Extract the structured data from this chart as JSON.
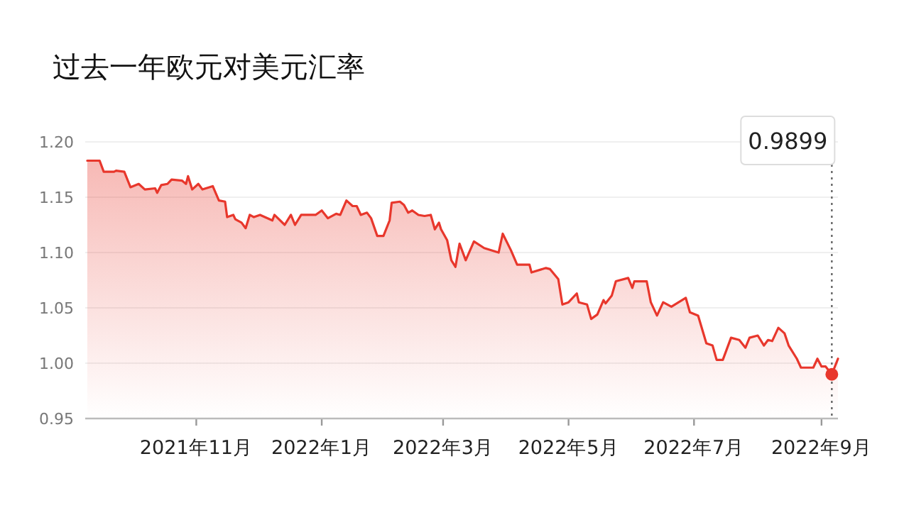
{
  "chart_data": {
    "type": "area",
    "title": "过去一年欧元对美元汇率",
    "color": "#e8372c",
    "grid": "y",
    "x": [
      "2021-09-09",
      "2021-09-15",
      "2021-09-17",
      "2021-09-22",
      "2021-09-23",
      "2021-09-27",
      "2021-09-30",
      "2021-10-04",
      "2021-10-07",
      "2021-10-12",
      "2021-10-13",
      "2021-10-15",
      "2021-10-18",
      "2021-10-20",
      "2021-10-25",
      "2021-10-27",
      "2021-10-28",
      "2021-10-30",
      "2021-11-02",
      "2021-11-04",
      "2021-11-09",
      "2021-11-12",
      "2021-11-15",
      "2021-11-16",
      "2021-11-19",
      "2021-11-20",
      "2021-11-23",
      "2021-11-25",
      "2021-11-27",
      "2021-11-29",
      "2021-12-02",
      "2021-12-08",
      "2021-12-09",
      "2021-12-14",
      "2021-12-17",
      "2021-12-19",
      "2021-12-22",
      "2021-12-29",
      "2022-01-01",
      "2022-01-04",
      "2022-01-08",
      "2022-01-10",
      "2022-01-13",
      "2022-01-16",
      "2022-01-18",
      "2022-01-20",
      "2022-01-23",
      "2022-01-25",
      "2022-01-28",
      "2022-01-31",
      "2022-02-03",
      "2022-02-04",
      "2022-02-08",
      "2022-02-10",
      "2022-02-12",
      "2022-02-14",
      "2022-02-17",
      "2022-02-20",
      "2022-02-23",
      "2022-02-25",
      "2022-02-27",
      "2022-02-28",
      "2022-03-03",
      "2022-03-05",
      "2022-03-07",
      "2022-03-09",
      "2022-03-12",
      "2022-03-16",
      "2022-03-21",
      "2022-03-28",
      "2022-03-30",
      "2022-04-03",
      "2022-04-06",
      "2022-04-12",
      "2022-04-13",
      "2022-04-20",
      "2022-04-22",
      "2022-04-26",
      "2022-04-28",
      "2022-05-01",
      "2022-05-05",
      "2022-05-06",
      "2022-05-10",
      "2022-05-12",
      "2022-05-15",
      "2022-05-18",
      "2022-05-19",
      "2022-05-22",
      "2022-05-24",
      "2022-05-30",
      "2022-06-01",
      "2022-06-02",
      "2022-06-08",
      "2022-06-10",
      "2022-06-13",
      "2022-06-16",
      "2022-06-20",
      "2022-06-27",
      "2022-06-29",
      "2022-07-03",
      "2022-07-07",
      "2022-07-10",
      "2022-07-12",
      "2022-07-15",
      "2022-07-19",
      "2022-07-23",
      "2022-07-26",
      "2022-07-28",
      "2022-08-01",
      "2022-08-04",
      "2022-08-06",
      "2022-08-08",
      "2022-08-11",
      "2022-08-14",
      "2022-08-16",
      "2022-08-20",
      "2022-08-22",
      "2022-08-28",
      "2022-08-30",
      "2022-09-01",
      "2022-09-03",
      "2022-09-06",
      "2022-09-09"
    ],
    "values": [
      1.183,
      1.183,
      1.173,
      1.173,
      1.174,
      1.173,
      1.159,
      1.162,
      1.157,
      1.158,
      1.154,
      1.161,
      1.162,
      1.166,
      1.165,
      1.162,
      1.169,
      1.157,
      1.162,
      1.157,
      1.16,
      1.147,
      1.146,
      1.132,
      1.134,
      1.13,
      1.127,
      1.122,
      1.134,
      1.132,
      1.134,
      1.129,
      1.134,
      1.125,
      1.134,
      1.125,
      1.134,
      1.134,
      1.138,
      1.131,
      1.135,
      1.134,
      1.147,
      1.142,
      1.142,
      1.134,
      1.136,
      1.131,
      1.115,
      1.115,
      1.129,
      1.145,
      1.146,
      1.143,
      1.136,
      1.138,
      1.134,
      1.133,
      1.134,
      1.121,
      1.127,
      1.121,
      1.111,
      1.093,
      1.087,
      1.108,
      1.093,
      1.11,
      1.104,
      1.1,
      1.117,
      1.102,
      1.089,
      1.089,
      1.082,
      1.086,
      1.085,
      1.076,
      1.053,
      1.055,
      1.063,
      1.055,
      1.053,
      1.04,
      1.044,
      1.057,
      1.054,
      1.061,
      1.074,
      1.077,
      1.068,
      1.074,
      1.074,
      1.055,
      1.043,
      1.055,
      1.051,
      1.059,
      1.046,
      1.043,
      1.018,
      1.016,
      1.003,
      1.003,
      1.023,
      1.021,
      1.014,
      1.023,
      1.025,
      1.016,
      1.021,
      1.02,
      1.032,
      1.027,
      1.016,
      1.004,
      0.996,
      0.996,
      1.004,
      0.997,
      0.997,
      0.9899,
      1.004
    ],
    "xlim": [
      "2021-09-08",
      "2022-09-09"
    ],
    "xticks": [
      {
        "value": "2021-11-01",
        "label": "2021年11月"
      },
      {
        "value": "2022-01-01",
        "label": "2022年1月"
      },
      {
        "value": "2022-03-01",
        "label": "2022年3月"
      },
      {
        "value": "2022-05-01",
        "label": "2022年5月"
      },
      {
        "value": "2022-07-01",
        "label": "2022年7月"
      },
      {
        "value": "2022-09-01",
        "label": "2022年9月"
      }
    ],
    "ylim": [
      0.95,
      1.2
    ],
    "yticks": [
      {
        "value": 0.95,
        "label": "0.95"
      },
      {
        "value": 1.0,
        "label": "1.00"
      },
      {
        "value": 1.05,
        "label": "1.05"
      },
      {
        "value": 1.1,
        "label": "1.10"
      },
      {
        "value": 1.15,
        "label": "1.15"
      },
      {
        "value": 1.2,
        "label": "1.20"
      }
    ],
    "ref_lines": [
      {
        "axis": "x",
        "value": "2022-09-06",
        "label": "0.9899",
        "color": "#666666",
        "line_style": "dotted"
      }
    ]
  }
}
